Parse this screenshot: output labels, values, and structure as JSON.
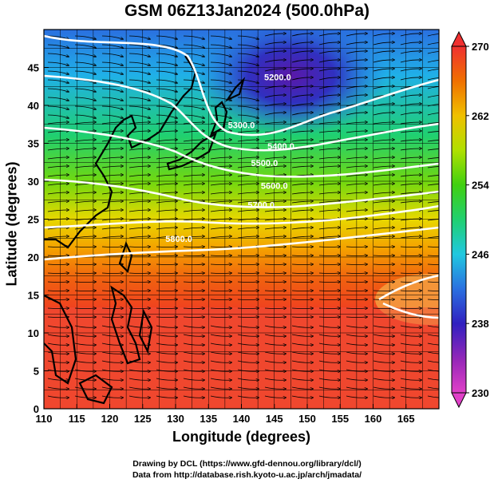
{
  "title": "GSM 06Z13Jan2024 (500.0hPa)",
  "xlabel": "Longitude (degrees)",
  "ylabel": "Latitude  (degrees)",
  "credit_line1": "Drawing by DCL (https://www.gfd-dennou.org/library/dcl/)",
  "credit_line2": "Data from http://database.rish.kyoto-u.ac.jp/arch/jmadata/",
  "x_ticks": [
    "110",
    "115",
    "120",
    "125",
    "130",
    "135",
    "140",
    "145",
    "150",
    "155",
    "160",
    "165"
  ],
  "y_ticks": [
    "0",
    "5",
    "10",
    "15",
    "20",
    "25",
    "30",
    "35",
    "40",
    "45"
  ],
  "colorbar_ticks": [
    "230",
    "238",
    "246",
    "254",
    "262",
    "270"
  ],
  "contour_labels": [
    {
      "text": "5200.0",
      "lon": 145.5,
      "lat": 43.3
    },
    {
      "text": "5300.0",
      "lon": 140.0,
      "lat": 37.0
    },
    {
      "text": "5400.0",
      "lon": 146.0,
      "lat": 34.2
    },
    {
      "text": "5500.0",
      "lon": 143.5,
      "lat": 32.0
    },
    {
      "text": "5600.0",
      "lon": 145.0,
      "lat": 29.0
    },
    {
      "text": "5700.0",
      "lon": 143.0,
      "lat": 26.5
    },
    {
      "text": "5800.0",
      "lon": 130.5,
      "lat": 22.0
    }
  ],
  "colors": {
    "colorbar_stops": [
      "#e040c8",
      "#7a20b0",
      "#2030c8",
      "#2a70e0",
      "#20c8e0",
      "#20d070",
      "#40d010",
      "#b0e000",
      "#f0c000",
      "#f08000",
      "#f04020",
      "#f03030"
    ]
  },
  "chart_data": {
    "type": "map",
    "variable": "temperature at 500 hPa with geopotential height contours and wind streamlines",
    "xlim": [
      110,
      170
    ],
    "ylim": [
      0,
      50
    ],
    "colorbar_range": [
      230,
      270
    ],
    "contour_levels": [
      5200,
      5300,
      5400,
      5500,
      5600,
      5700,
      5800
    ]
  }
}
